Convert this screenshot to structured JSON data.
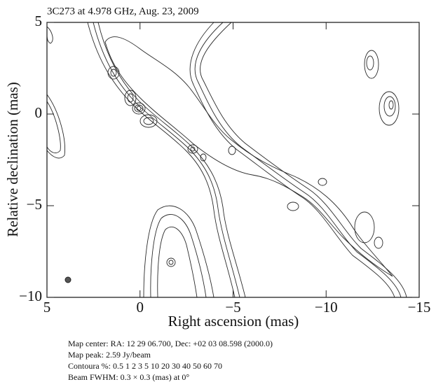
{
  "chart_data": {
    "type": "contour",
    "title": "3C273  at 4.978 GHz, Aug. 23, 2009",
    "xlabel": "Right ascension (mas)",
    "ylabel": "Relative declination (mas)",
    "xlim": [
      5,
      -15
    ],
    "ylim": [
      -10,
      5
    ],
    "xticks": [
      5,
      0,
      {
        "value": -5,
        "label": "−5"
      },
      {
        "value": -10,
        "label": "−10"
      },
      {
        "value": -15,
        "label": "−15"
      }
    ],
    "yticks": [
      5,
      0,
      {
        "value": -5,
        "label": "−5"
      },
      {
        "value": -10,
        "label": "−10"
      }
    ],
    "notes": [
      "Map center: RA: 12 29 06.700, Dec: +02 03 08.598 (2000.0)",
      "Map peak: 2.59 Jy/beam",
      "Contoura %: 0.5 1 2 3 5 10 20 30 40 50 60 70",
      "Beam FWHM: 0.3 × 0.3 (mas) at 0°"
    ]
  }
}
